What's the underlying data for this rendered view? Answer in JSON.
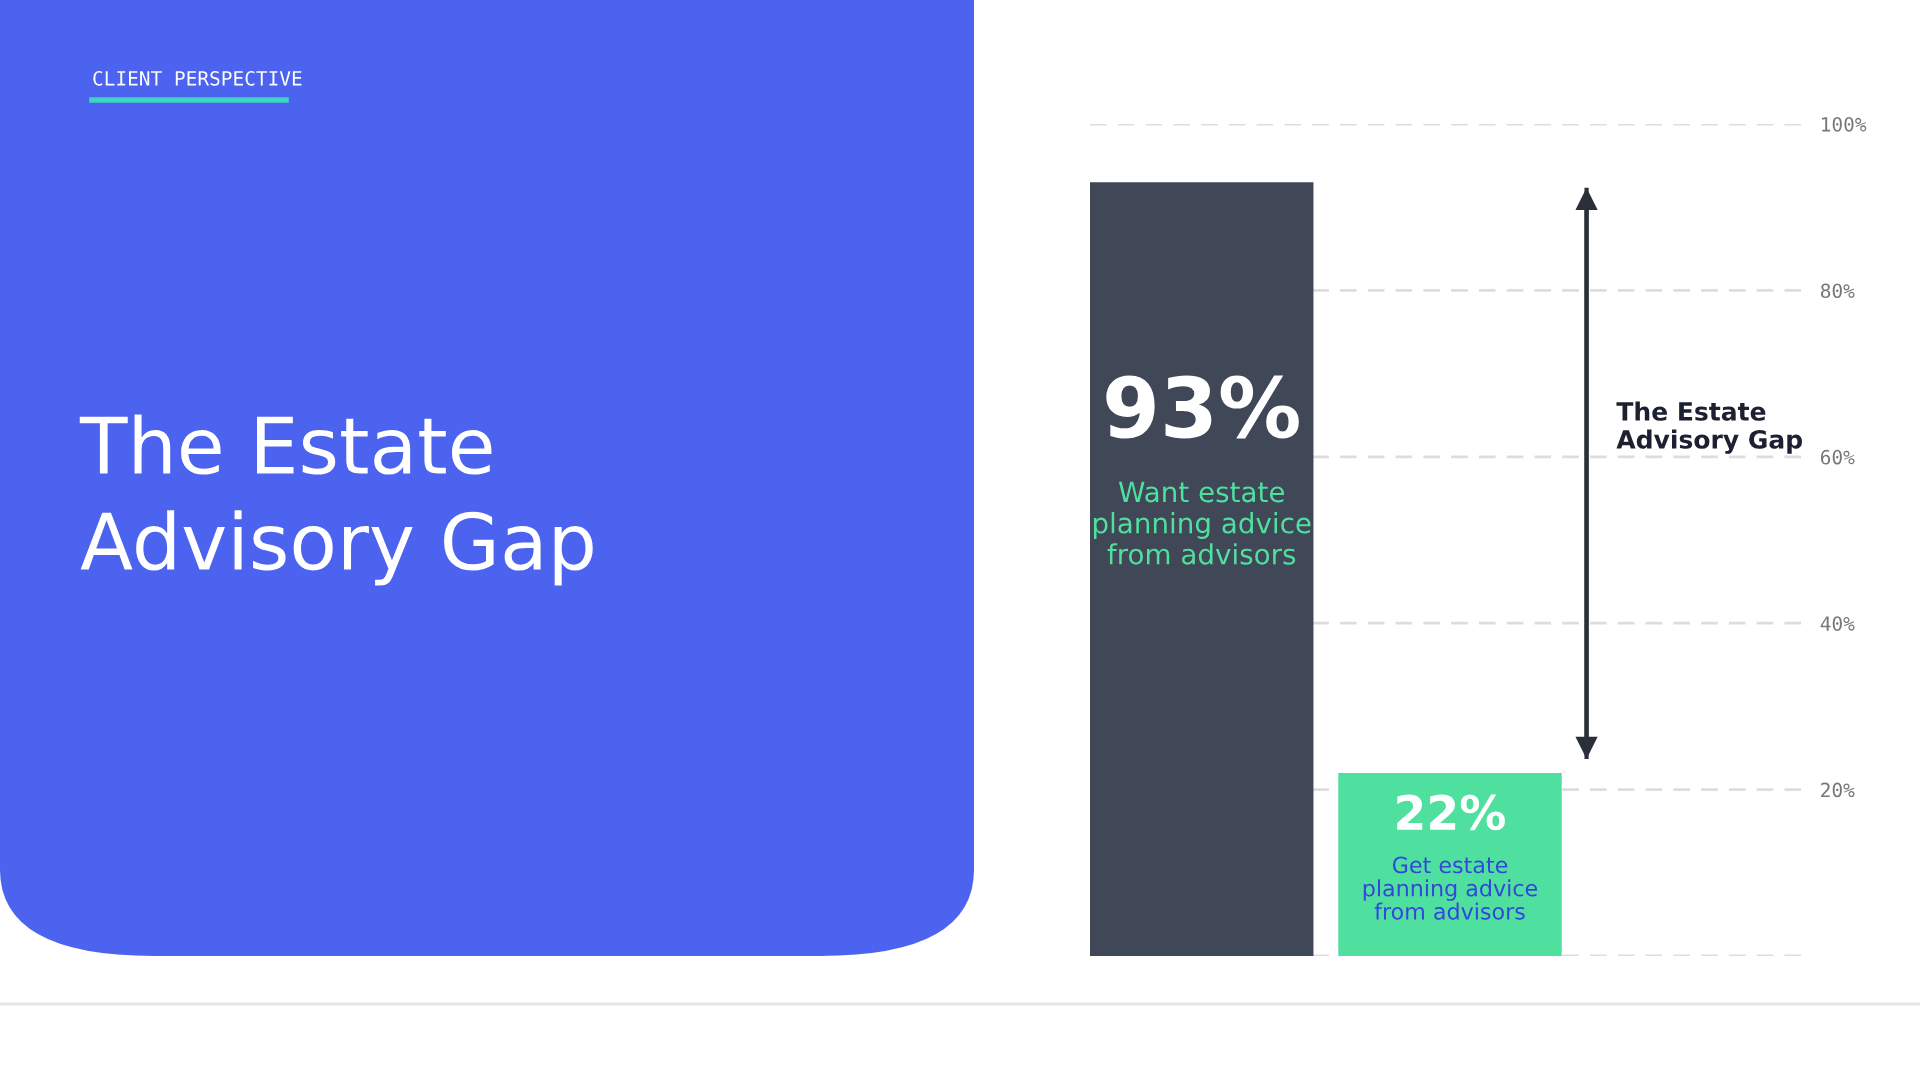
{
  "chart_data": {
    "type": "bar",
    "title": "The Estate Advisory Gap",
    "subtitle": "CLIENT PERSPECTIVE",
    "categories": [
      "Want estate planning advice from advisors",
      "Get estate planning advice from advisors"
    ],
    "values": [
      93,
      22
    ],
    "colors": [
      "#404756",
      "#4fe0a0"
    ],
    "value_labels": [
      "93%",
      "22%"
    ],
    "annotations": [
      "The Estate Advisory Gap"
    ],
    "ylim": [
      0,
      100
    ],
    "yticks": [
      {
        "value": 0,
        "label": null
      },
      {
        "value": 20,
        "label": "20%"
      },
      {
        "value": 40,
        "label": "40%"
      },
      {
        "value": 60,
        "label": "60%"
      },
      {
        "value": 80,
        "label": "80%"
      },
      {
        "value": 100,
        "label": "100%"
      }
    ],
    "grid": "y"
  }
}
